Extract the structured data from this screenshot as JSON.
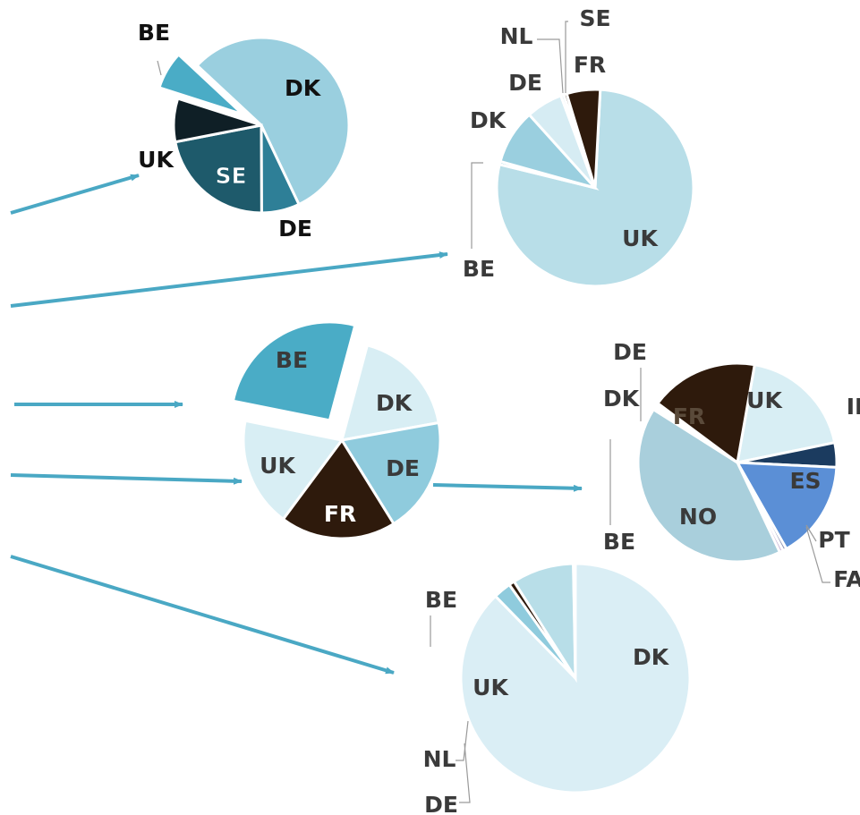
{
  "colors": {
    "arrow": "#4AA8C4",
    "leader": "#9A9A9A",
    "label_dark": "#3a3a3a",
    "label_black": "#111111",
    "label_light": "#ffffff"
  },
  "chart_data": [
    {
      "type": "pie",
      "title": "",
      "slices": [
        {
          "label": "DK",
          "value": 56,
          "color": "#9ACFDF"
        },
        {
          "label": "DE",
          "value": 7,
          "color": "#2E7F97"
        },
        {
          "label": "SE",
          "value": 22,
          "color": "#1E5A6B"
        },
        {
          "label": "UK",
          "value": 8,
          "color": "#0F1F26"
        },
        {
          "label": "BE",
          "value": 7,
          "color": "#4AACC6",
          "exploded": true
        }
      ]
    },
    {
      "type": "pie",
      "title": "",
      "slices": [
        {
          "label": "UK",
          "value": 78,
          "color": "#B8DEE8"
        },
        {
          "label": "BE",
          "value": 0.5,
          "color": "#5FB5CF"
        },
        {
          "label": "DK",
          "value": 9,
          "color": "#9ACFDF"
        },
        {
          "label": "DE",
          "value": 6,
          "color": "#D6ECF3"
        },
        {
          "label": "NL",
          "value": 0.5,
          "color": "#CFE6EE"
        },
        {
          "label": "SE",
          "value": 0.5,
          "color": "#3A2A1A"
        },
        {
          "label": "FR",
          "value": 5.5,
          "color": "#2E1A0C"
        }
      ]
    },
    {
      "type": "pie",
      "title": "",
      "slices": [
        {
          "label": "DK",
          "value": 18,
          "color": "#D8EEF4"
        },
        {
          "label": "DE",
          "value": 19,
          "color": "#8FCBDD"
        },
        {
          "label": "FR",
          "value": 19,
          "color": "#2E1A0C"
        },
        {
          "label": "UK",
          "value": 18,
          "color": "#D8EEF4"
        },
        {
          "label": "BE",
          "value": 26,
          "color": "#4AACC6",
          "exploded": true
        }
      ]
    },
    {
      "type": "pie",
      "title": "",
      "slices": [
        {
          "label": "UK",
          "value": 19,
          "color": "#D8EEF4"
        },
        {
          "label": "IR",
          "value": 4,
          "color": "#1B3B5F"
        },
        {
          "label": "ES",
          "value": 16,
          "color": "#5B8FD6"
        },
        {
          "label": "PT",
          "value": 0.6,
          "color": "#8A8FB3"
        },
        {
          "label": "FA",
          "value": 0.6,
          "color": "#C9B3D6"
        },
        {
          "label": "NO",
          "value": 41,
          "color": "#A9CFDC"
        },
        {
          "label": "BE",
          "value": 0.4,
          "color": "#C9E3EC"
        },
        {
          "label": "DK",
          "value": 0.4,
          "color": "#9ACFDF"
        },
        {
          "label": "DE",
          "value": 0.4,
          "color": "#B8DEE8"
        },
        {
          "label": "FR",
          "value": 17.6,
          "color": "#2E1A0C"
        }
      ]
    },
    {
      "type": "pie",
      "title": "",
      "slices": [
        {
          "label": "DK",
          "value": 87.7,
          "color": "#DAEEF5"
        },
        {
          "label": "DE",
          "value": 2.5,
          "color": "#8FCBDD"
        },
        {
          "label": "NL",
          "value": 0.8,
          "color": "#2E1A0C"
        },
        {
          "label": "UK",
          "value": 8.7,
          "color": "#B8DEE8"
        },
        {
          "label": "BE",
          "value": 0.3,
          "color": "#4AACC6",
          "exploded": true
        }
      ]
    }
  ]
}
